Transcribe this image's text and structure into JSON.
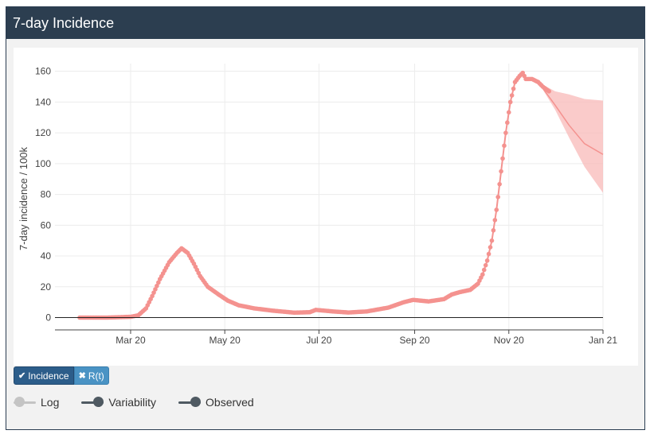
{
  "header": {
    "title": "7-day Incidence"
  },
  "toggles": [
    {
      "label": "Incidence",
      "icon": "check-icon",
      "glyph": "✔",
      "active": true
    },
    {
      "label": "R(t)",
      "icon": "x-icon",
      "glyph": "✖",
      "active": false
    }
  ],
  "switches": [
    {
      "label": "Log",
      "on": false
    },
    {
      "label": "Variability",
      "on": true
    },
    {
      "label": "Observed",
      "on": true
    }
  ],
  "colors": {
    "header": "#2c3e50",
    "series": "#f4928f",
    "band": "#f8bab8",
    "active_button": "#2c5d8a",
    "inactive_button": "#4a93c4"
  },
  "chart_data": {
    "type": "line",
    "title": "",
    "xlabel": "",
    "ylabel": "7-day incidence / 100k",
    "xlim": [
      "2020-01-12",
      "2021-01-01"
    ],
    "ylim": [
      -8,
      165
    ],
    "yticks": [
      0,
      20,
      40,
      60,
      80,
      100,
      120,
      140,
      160
    ],
    "xticks": [
      {
        "date": "2020-03-01",
        "label": "Mar 20"
      },
      {
        "date": "2020-05-01",
        "label": "May 20"
      },
      {
        "date": "2020-07-01",
        "label": "Jul 20"
      },
      {
        "date": "2020-09-01",
        "label": "Sep 20"
      },
      {
        "date": "2020-11-01",
        "label": "Nov 20"
      },
      {
        "date": "2021-01-01",
        "label": "Jan 21"
      }
    ],
    "grid": true,
    "series": [
      {
        "kind": "observed",
        "points": [
          [
            "2020-01-28",
            0
          ],
          [
            "2020-02-15",
            0
          ],
          [
            "2020-03-01",
            0.5
          ],
          [
            "2020-03-06",
            1.5
          ],
          [
            "2020-03-11",
            6
          ],
          [
            "2020-03-15",
            14
          ],
          [
            "2020-03-20",
            25
          ],
          [
            "2020-03-26",
            36
          ],
          [
            "2020-03-31",
            42
          ],
          [
            "2020-04-03",
            45
          ],
          [
            "2020-04-07",
            42
          ],
          [
            "2020-04-11",
            35
          ],
          [
            "2020-04-15",
            27
          ],
          [
            "2020-04-20",
            20
          ],
          [
            "2020-04-27",
            15
          ],
          [
            "2020-05-03",
            11
          ],
          [
            "2020-05-10",
            8
          ],
          [
            "2020-05-20",
            6
          ],
          [
            "2020-06-01",
            4.5
          ],
          [
            "2020-06-15",
            3.2
          ],
          [
            "2020-06-25",
            3.5
          ],
          [
            "2020-06-29",
            5
          ],
          [
            "2020-07-10",
            4
          ],
          [
            "2020-07-20",
            3.3
          ],
          [
            "2020-08-01",
            4
          ],
          [
            "2020-08-15",
            6.5
          ],
          [
            "2020-08-25",
            10
          ],
          [
            "2020-08-31",
            11.5
          ],
          [
            "2020-09-10",
            10.5
          ],
          [
            "2020-09-20",
            12
          ],
          [
            "2020-09-25",
            15
          ],
          [
            "2020-09-30",
            16.5
          ],
          [
            "2020-10-07",
            18
          ],
          [
            "2020-10-12",
            22
          ],
          [
            "2020-10-15",
            28
          ],
          [
            "2020-10-18",
            37
          ],
          [
            "2020-10-21",
            50
          ],
          [
            "2020-10-24",
            70
          ],
          [
            "2020-10-27",
            95
          ],
          [
            "2020-10-30",
            120
          ],
          [
            "2020-11-02",
            140
          ],
          [
            "2020-11-05",
            153
          ],
          [
            "2020-11-08",
            157
          ],
          [
            "2020-11-10",
            159
          ],
          [
            "2020-11-12",
            155
          ],
          [
            "2020-11-16",
            155
          ],
          [
            "2020-11-20",
            153
          ],
          [
            "2020-11-23",
            150
          ],
          [
            "2020-11-27",
            147
          ]
        ]
      },
      {
        "kind": "forecast",
        "points": [
          [
            "2020-11-20",
            153
          ],
          [
            "2020-12-01",
            138
          ],
          [
            "2020-12-10",
            125
          ],
          [
            "2020-12-20",
            113
          ],
          [
            "2021-01-01",
            106
          ]
        ],
        "band": [
          [
            "2020-11-20",
            153,
            153
          ],
          [
            "2020-12-01",
            135,
            147
          ],
          [
            "2020-12-10",
            117,
            145
          ],
          [
            "2020-12-20",
            98,
            142
          ],
          [
            "2021-01-01",
            81,
            141
          ]
        ]
      }
    ]
  }
}
